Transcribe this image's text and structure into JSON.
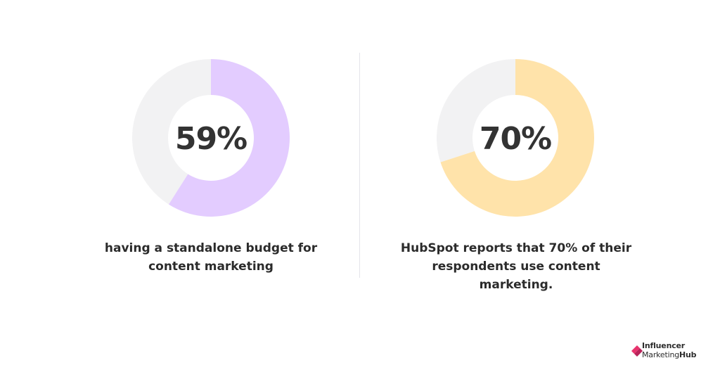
{
  "chart_data": [
    {
      "type": "pie",
      "value": 59,
      "remainder": 41,
      "center_label": "59%",
      "caption_lines": [
        "having a standalone budget for",
        "content marketing"
      ],
      "colors": {
        "filled": "#e3ccff",
        "remainder": "#f2f2f3",
        "hole": "#ffffff"
      }
    },
    {
      "type": "pie",
      "value": 70,
      "remainder": 30,
      "center_label": "70%",
      "caption_lines": [
        "HubSpot reports that 70% of their",
        "respondents use content marketing."
      ],
      "colors": {
        "filled": "#ffe3aa",
        "remainder": "#f2f2f3",
        "hole": "#ffffff"
      }
    }
  ],
  "brand": {
    "line1": "Influencer",
    "line2a": "Marketing",
    "line2b": "Hub",
    "mark_colors": [
      "#e8336d",
      "#b8245a"
    ]
  }
}
